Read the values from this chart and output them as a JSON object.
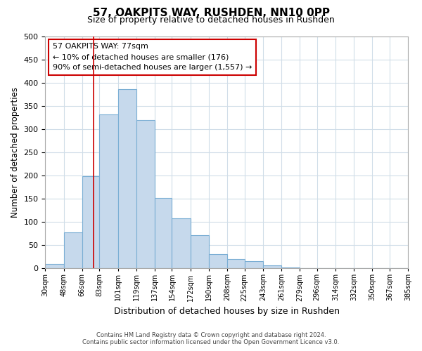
{
  "title": "57, OAKPITS WAY, RUSHDEN, NN10 0PP",
  "subtitle": "Size of property relative to detached houses in Rushden",
  "xlabel": "Distribution of detached houses by size in Rushden",
  "ylabel": "Number of detached properties",
  "bar_values": [
    10,
    78,
    199,
    332,
    386,
    320,
    151,
    108,
    72,
    30,
    20,
    15,
    7,
    2,
    0,
    1,
    0,
    0,
    0,
    1
  ],
  "bin_edges": [
    30,
    48,
    66,
    83,
    101,
    119,
    137,
    154,
    172,
    190,
    208,
    225,
    243,
    261,
    279,
    296,
    314,
    332,
    350,
    367,
    385
  ],
  "tick_labels": [
    "30sqm",
    "48sqm",
    "66sqm",
    "83sqm",
    "101sqm",
    "119sqm",
    "137sqm",
    "154sqm",
    "172sqm",
    "190sqm",
    "208sqm",
    "225sqm",
    "243sqm",
    "261sqm",
    "279sqm",
    "296sqm",
    "314sqm",
    "332sqm",
    "350sqm",
    "367sqm",
    "385sqm"
  ],
  "bar_color": "#c6d9ec",
  "bar_edgecolor": "#7aaed4",
  "vline_x": 77,
  "vline_color": "#cc0000",
  "ylim": [
    0,
    500
  ],
  "yticks": [
    0,
    50,
    100,
    150,
    200,
    250,
    300,
    350,
    400,
    450,
    500
  ],
  "annotation_title": "57 OAKPITS WAY: 77sqm",
  "annotation_line1": "← 10% of detached houses are smaller (176)",
  "annotation_line2": "90% of semi-detached houses are larger (1,557) →",
  "annotation_box_color": "#ffffff",
  "annotation_box_edgecolor": "#cc0000",
  "footer_line1": "Contains HM Land Registry data © Crown copyright and database right 2024.",
  "footer_line2": "Contains public sector information licensed under the Open Government Licence v3.0.",
  "background_color": "#ffffff",
  "grid_color": "#d0dde8"
}
